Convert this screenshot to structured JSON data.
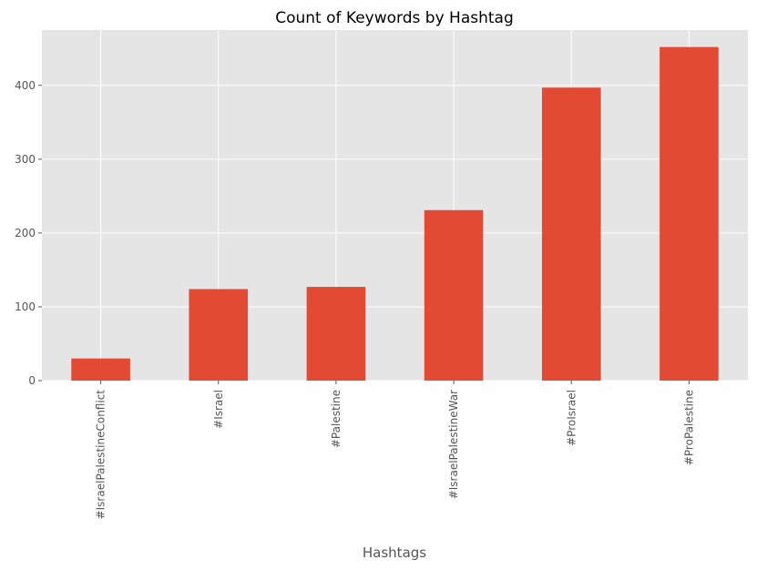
{
  "chart_data": {
    "type": "bar",
    "title": "Count of Keywords by Hashtag",
    "xlabel": "Hashtags",
    "ylabel": "",
    "categories": [
      "#IsraelPalestineConflict",
      "#Israel",
      "#Palestine",
      "#IsraelPalestineWar",
      "#ProIsrael",
      "#ProPalestine"
    ],
    "values": [
      30,
      124,
      127,
      231,
      397,
      452
    ],
    "ylim": [
      0,
      475
    ],
    "yticks": [
      0,
      100,
      200,
      300,
      400
    ],
    "ytick_labels": [
      "0",
      "100",
      "200",
      "300",
      "400"
    ],
    "grid": true,
    "legend": "none",
    "colors": {
      "bar": "#e24a33",
      "plot_background": "#e5e5e5",
      "grid": "#ffffff",
      "tick_text": "#555555",
      "title_text": "#000000"
    }
  }
}
